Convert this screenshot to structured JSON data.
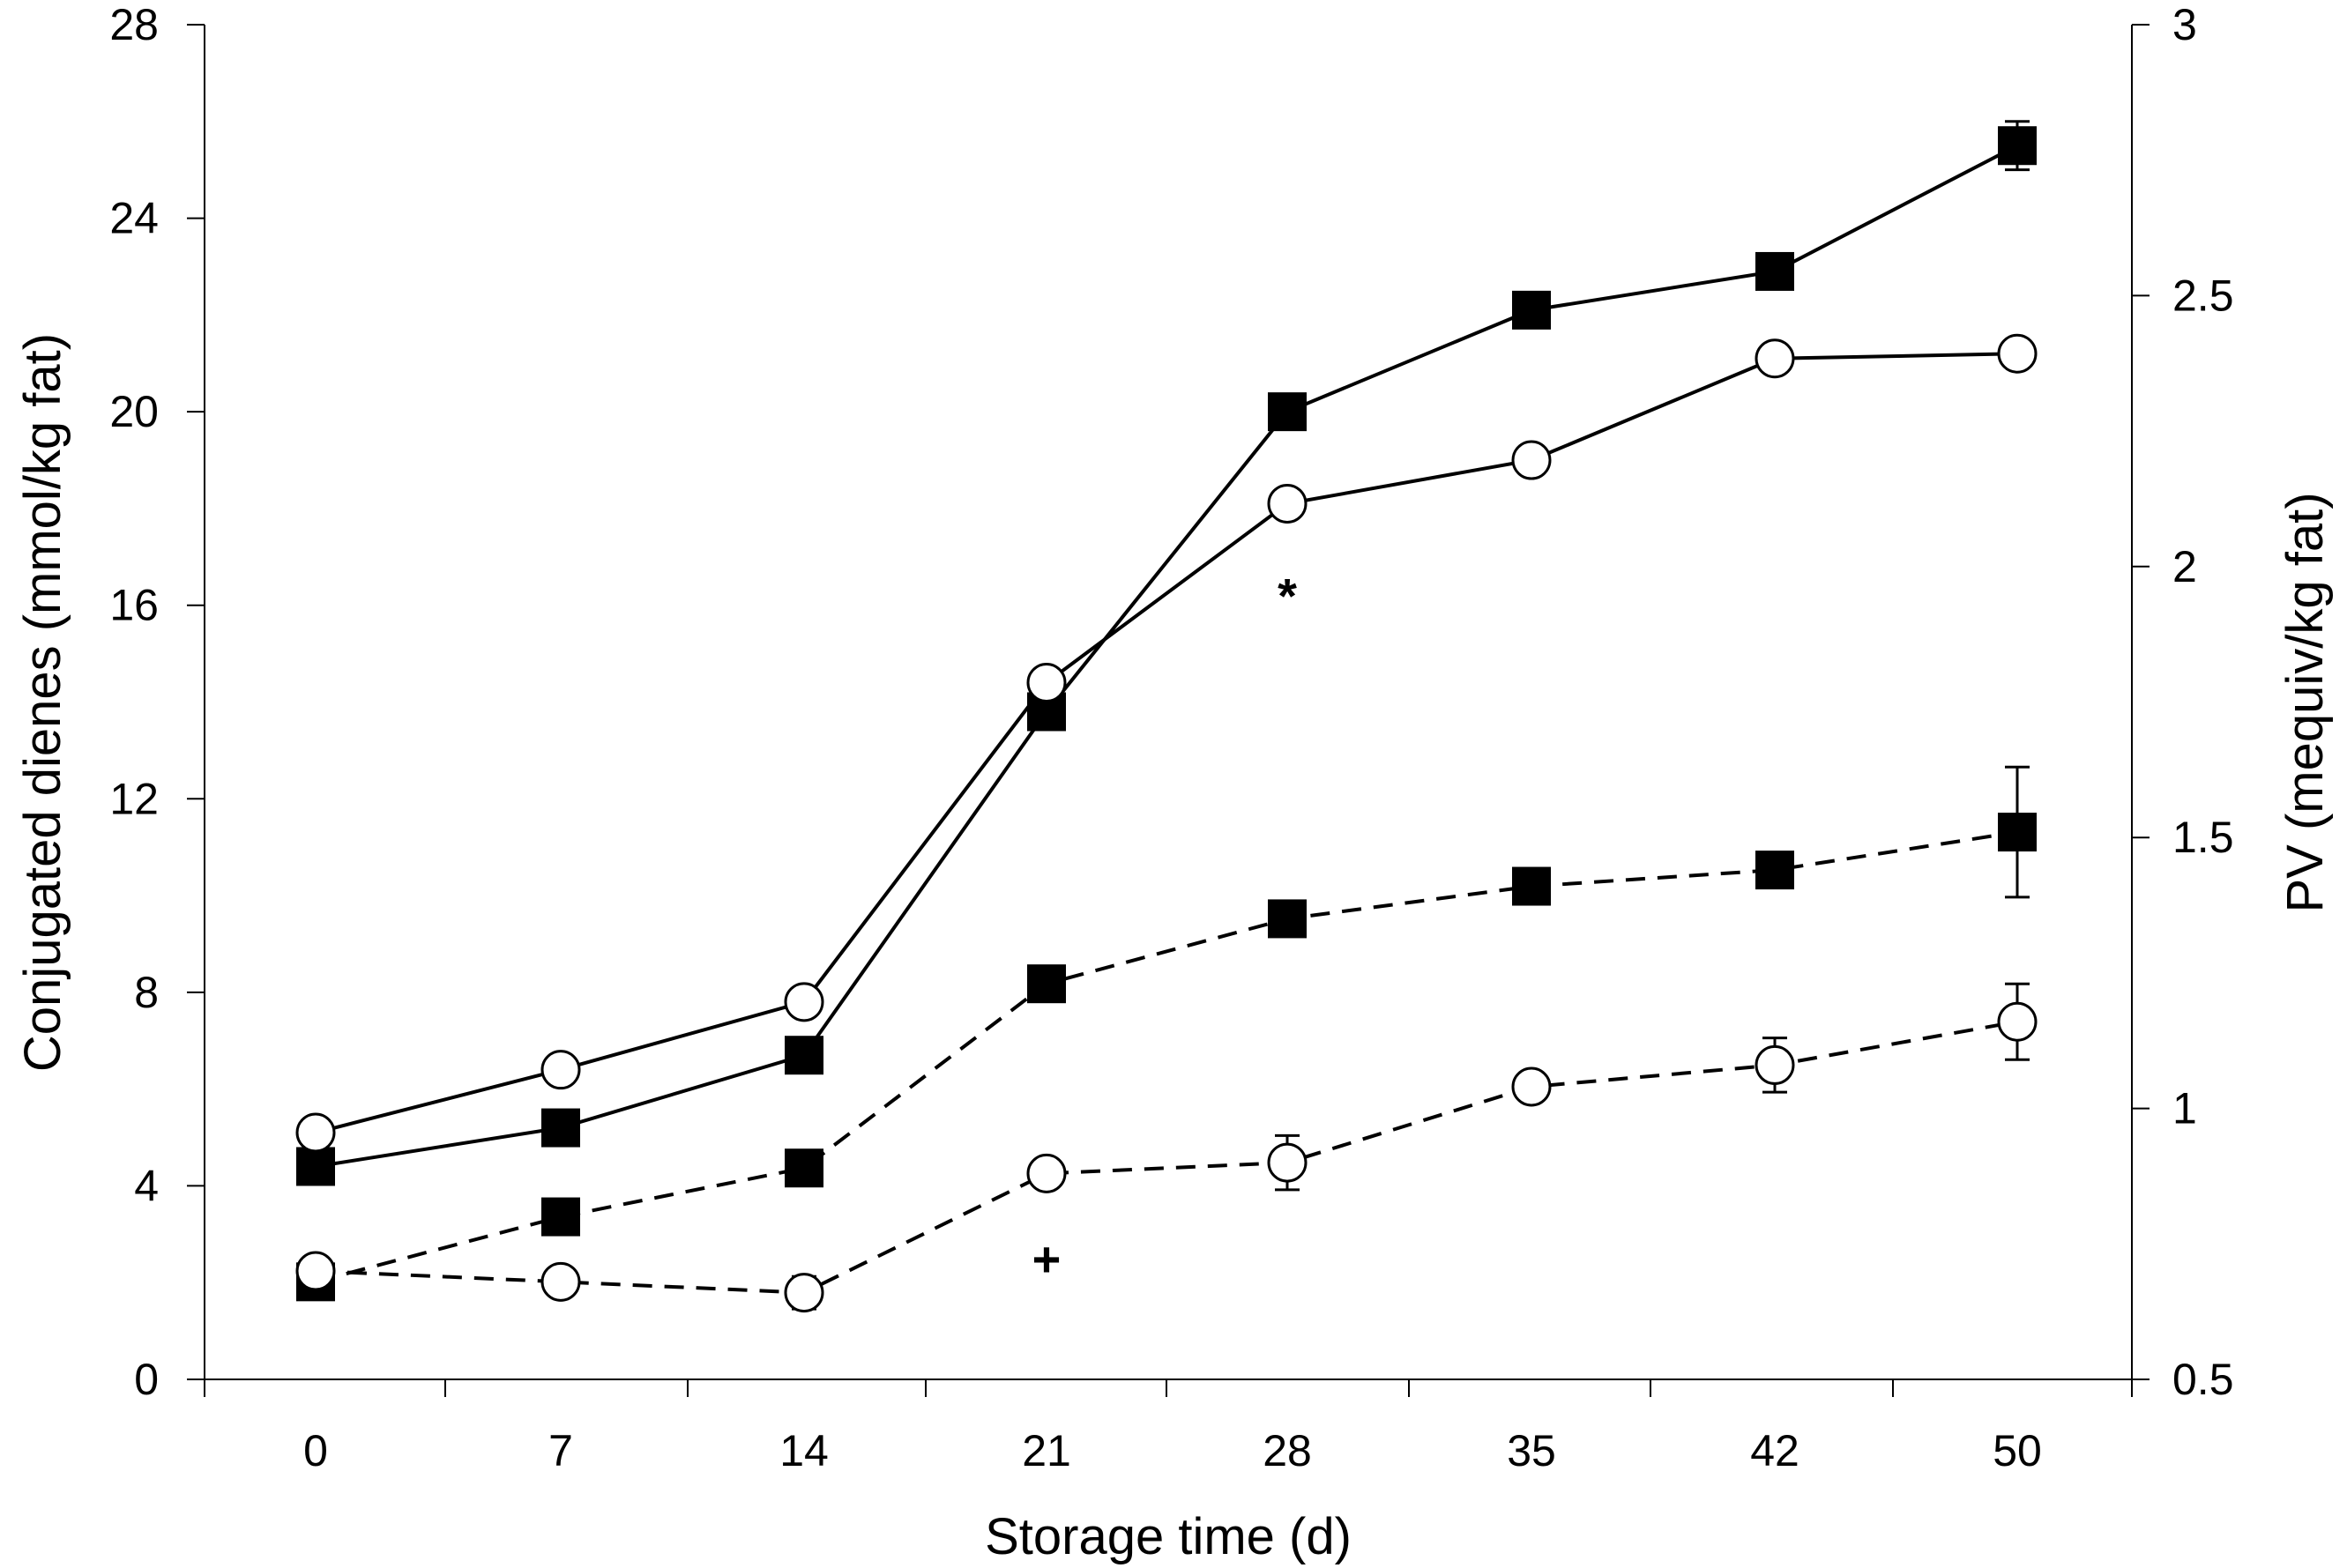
{
  "chart_data": {
    "type": "line",
    "title": "",
    "xlabel": "Storage time (d)",
    "ylabel_left": "Conjugated dienes (mmol/kg fat)",
    "ylabel_right": "PV (mequiv/kg fat)",
    "categories": [
      "0",
      "7",
      "14",
      "21",
      "28",
      "35",
      "42",
      "50"
    ],
    "ylim_left": [
      0,
      28
    ],
    "yticks_left": [
      "0",
      "4",
      "8",
      "12",
      "16",
      "20",
      "24",
      "28"
    ],
    "ylim_right": [
      0.5,
      3
    ],
    "yticks_right": [
      "0.5",
      "1",
      "1.5",
      "2",
      "2.5",
      "3"
    ],
    "grid": false,
    "series": [
      {
        "name": "Conjugated dienes, filled squares",
        "axis": "left",
        "marker": "square-filled",
        "line": "solid",
        "values": [
          4.4,
          5.2,
          6.7,
          13.8,
          20.0,
          22.1,
          22.9,
          25.5
        ],
        "errors": [
          0,
          0,
          0,
          0,
          0,
          0,
          0,
          0.5
        ]
      },
      {
        "name": "Conjugated dienes, open circles",
        "axis": "left",
        "marker": "circle-open",
        "line": "solid",
        "values": [
          5.1,
          6.4,
          7.8,
          14.4,
          18.1,
          19.0,
          21.1,
          21.2
        ],
        "errors": [
          0,
          0,
          0,
          0,
          0,
          0,
          0,
          0
        ]
      },
      {
        "name": "PV, filled squares",
        "axis": "right",
        "marker": "square-filled",
        "line": "dashed",
        "values": [
          0.68,
          0.8,
          0.89,
          1.23,
          1.35,
          1.41,
          1.44,
          1.51
        ],
        "errors": [
          0,
          0,
          0,
          0,
          0,
          0,
          0,
          0.12
        ]
      },
      {
        "name": "PV, open circles",
        "axis": "right",
        "marker": "circle-open",
        "line": "dashed",
        "values": [
          0.7,
          0.68,
          0.66,
          0.88,
          0.9,
          1.04,
          1.08,
          1.16
        ],
        "errors": [
          0,
          0,
          0.03,
          0,
          0.05,
          0,
          0.05,
          0.07
        ]
      }
    ],
    "annotations": [
      {
        "text": "*",
        "category": "28",
        "y_left": 16.2
      },
      {
        "text": "+",
        "category": "21",
        "y_left": 2.5
      }
    ]
  }
}
